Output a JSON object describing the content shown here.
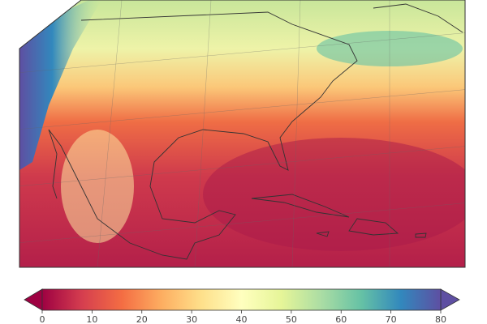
{
  "colorbar": {
    "lim": [
      0,
      80
    ],
    "ticks": [
      0,
      10,
      20,
      30,
      40,
      50,
      60,
      70,
      80
    ]
  }
}
